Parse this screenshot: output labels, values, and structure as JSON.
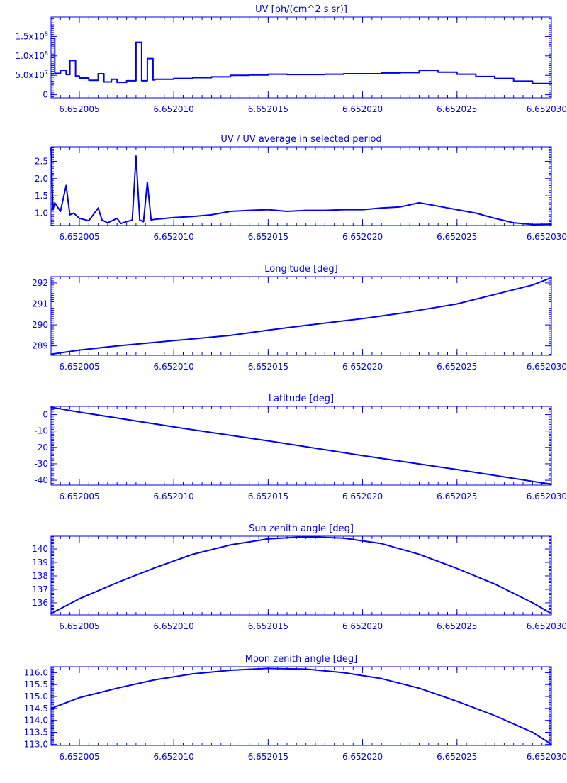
{
  "page": {
    "ink_color": "#0000ee",
    "background": "#ffffff"
  },
  "chart_data": [
    {
      "type": "line",
      "style": "step",
      "title": "UV [ph/(cm^2 s sr)]",
      "xlabel": "",
      "ylabel": "",
      "xlim": [
        6.6520035,
        6.65203
      ],
      "ylim": [
        -8000000,
        200000000
      ],
      "x_ticks": [
        6.652005,
        6.65201,
        6.652015,
        6.65202,
        6.652025,
        6.65203
      ],
      "x_tick_labels": [
        "6.652005",
        "6.652010",
        "6.652015",
        "6.652020",
        "6.652025",
        "6.652030"
      ],
      "y_ticks": [
        0,
        50000000,
        100000000,
        150000000
      ],
      "y_tick_labels": [
        {
          "base": "0",
          "exp": ""
        },
        {
          "base": "5.0x10",
          "exp": "7"
        },
        {
          "base": "1.0x10",
          "exp": "8"
        },
        {
          "base": "1.5x10",
          "exp": "8"
        }
      ],
      "series": [
        {
          "x": [
            6.6520035,
            6.6520037,
            6.652004,
            6.6520043,
            6.6520045,
            6.6520048,
            6.652005,
            6.6520055,
            6.652006,
            6.6520063,
            6.6520067,
            6.652007,
            6.6520075,
            6.652008,
            6.6520083,
            6.6520086,
            6.6520089,
            6.652009,
            6.65201,
            6.652011,
            6.652012,
            6.652013,
            6.652014,
            6.652015,
            6.652016,
            6.652017,
            6.652018,
            6.652019,
            6.65202,
            6.652021,
            6.652022,
            6.652023,
            6.652024,
            6.652025,
            6.652026,
            6.652027,
            6.652028,
            6.652029,
            6.65203
          ],
          "y": [
            145000000,
            55000000,
            63000000,
            52000000,
            88000000,
            48000000,
            43000000,
            37000000,
            54000000,
            33000000,
            40000000,
            32000000,
            36000000,
            135000000,
            36000000,
            93000000,
            38000000,
            40000000,
            42000000,
            44000000,
            46000000,
            50000000,
            51000000,
            53000000,
            52000000,
            52000000,
            53000000,
            54000000,
            54000000,
            56000000,
            57000000,
            63000000,
            58000000,
            53000000,
            47000000,
            42000000,
            35000000,
            29000000,
            30000000
          ]
        }
      ]
    },
    {
      "type": "line",
      "title": "UV / UV average in selected period",
      "xlabel": "",
      "ylabel": "",
      "xlim": [
        6.6520035,
        6.65203
      ],
      "ylim": [
        0.64,
        2.92
      ],
      "x_ticks": [
        6.652005,
        6.65201,
        6.652015,
        6.65202,
        6.652025,
        6.65203
      ],
      "x_tick_labels": [
        "6.652005",
        "6.652010",
        "6.652015",
        "6.652020",
        "6.652025",
        "6.652030"
      ],
      "y_ticks": [
        1.0,
        1.5,
        2.0,
        2.5
      ],
      "y_tick_labels": [
        {
          "base": "1.0",
          "exp": ""
        },
        {
          "base": "1.5",
          "exp": ""
        },
        {
          "base": "2.0",
          "exp": ""
        },
        {
          "base": "2.5",
          "exp": ""
        }
      ],
      "series": [
        {
          "x": [
            6.6520035,
            6.6520036,
            6.6520037,
            6.652004,
            6.6520043,
            6.6520045,
            6.6520047,
            6.652005,
            6.6520055,
            6.652006,
            6.6520062,
            6.6520065,
            6.652007,
            6.6520072,
            6.6520075,
            6.6520078,
            6.652008,
            6.6520082,
            6.6520084,
            6.6520086,
            6.6520088,
            6.652009,
            6.65201,
            6.652011,
            6.652012,
            6.652013,
            6.652014,
            6.652015,
            6.652016,
            6.652017,
            6.652018,
            6.652019,
            6.65202,
            6.652021,
            6.652022,
            6.652023,
            6.652024,
            6.652025,
            6.652026,
            6.652027,
            6.652028,
            6.652029,
            6.65203
          ],
          "y": [
            2.9,
            1.1,
            1.3,
            1.05,
            1.8,
            0.95,
            1.0,
            0.85,
            0.78,
            1.15,
            0.8,
            0.72,
            0.85,
            0.7,
            0.75,
            0.8,
            2.65,
            0.8,
            0.75,
            1.9,
            0.8,
            0.82,
            0.87,
            0.9,
            0.95,
            1.05,
            1.08,
            1.1,
            1.05,
            1.08,
            1.08,
            1.1,
            1.1,
            1.15,
            1.18,
            1.3,
            1.2,
            1.1,
            1.0,
            0.85,
            0.72,
            0.67,
            0.68
          ]
        }
      ]
    },
    {
      "type": "line",
      "title": "Longitude [deg]",
      "xlabel": "",
      "ylabel": "",
      "xlim": [
        6.6520035,
        6.65203
      ],
      "ylim": [
        288.55,
        292.3
      ],
      "x_ticks": [
        6.652005,
        6.65201,
        6.652015,
        6.65202,
        6.652025,
        6.65203
      ],
      "x_tick_labels": [
        "6.652005",
        "6.652010",
        "6.652015",
        "6.652020",
        "6.652025",
        "6.652030"
      ],
      "y_ticks": [
        289,
        290,
        291,
        292
      ],
      "y_tick_labels": [
        {
          "base": "289",
          "exp": ""
        },
        {
          "base": "290",
          "exp": ""
        },
        {
          "base": "291",
          "exp": ""
        },
        {
          "base": "292",
          "exp": ""
        }
      ],
      "series": [
        {
          "x": [
            6.6520035,
            6.652005,
            6.652007,
            6.65201,
            6.652013,
            6.652015,
            6.652017,
            6.65202,
            6.652022,
            6.652025,
            6.652027,
            6.652029,
            6.65203
          ],
          "y": [
            288.6,
            288.8,
            289.0,
            289.25,
            289.5,
            289.75,
            289.98,
            290.3,
            290.55,
            291.0,
            291.45,
            291.9,
            292.25
          ]
        }
      ]
    },
    {
      "type": "line",
      "title": "Latitude [deg]",
      "xlabel": "",
      "ylabel": "",
      "xlim": [
        6.6520035,
        6.65203
      ],
      "ylim": [
        -43,
        5
      ],
      "x_ticks": [
        6.652005,
        6.65201,
        6.652015,
        6.65202,
        6.652025,
        6.65203
      ],
      "x_tick_labels": [
        "6.652005",
        "6.652010",
        "6.652015",
        "6.652020",
        "6.652025",
        "6.652030"
      ],
      "y_ticks": [
        0,
        -10,
        -20,
        -30,
        -40
      ],
      "y_tick_labels": [
        {
          "base": "0",
          "exp": ""
        },
        {
          "base": "-10",
          "exp": ""
        },
        {
          "base": "-20",
          "exp": ""
        },
        {
          "base": "-30",
          "exp": ""
        },
        {
          "base": "-40",
          "exp": ""
        }
      ],
      "series": [
        {
          "x": [
            6.6520035,
            6.652005,
            6.65201,
            6.652015,
            6.65202,
            6.652025,
            6.65203
          ],
          "y": [
            4.5,
            1.5,
            -7.5,
            -16,
            -25,
            -33.5,
            -42.5
          ]
        }
      ]
    },
    {
      "type": "line",
      "title": "Sun zenith angle [deg]",
      "xlabel": "",
      "ylabel": "",
      "xlim": [
        6.6520035,
        6.65203
      ],
      "ylim": [
        135.1,
        140.95
      ],
      "x_ticks": [
        6.652005,
        6.65201,
        6.652015,
        6.65202,
        6.652025,
        6.65203
      ],
      "x_tick_labels": [
        "6.652005",
        "6.652010",
        "6.652015",
        "6.652020",
        "6.652025",
        "6.652030"
      ],
      "y_ticks": [
        136,
        137,
        138,
        139,
        140
      ],
      "y_tick_labels": [
        {
          "base": "136",
          "exp": ""
        },
        {
          "base": "137",
          "exp": ""
        },
        {
          "base": "138",
          "exp": ""
        },
        {
          "base": "139",
          "exp": ""
        },
        {
          "base": "140",
          "exp": ""
        }
      ],
      "series": [
        {
          "x": [
            6.6520035,
            6.652005,
            6.652007,
            6.652009,
            6.652011,
            6.652013,
            6.652015,
            6.652017,
            6.652019,
            6.652021,
            6.652023,
            6.652025,
            6.652027,
            6.652029,
            6.65203
          ],
          "y": [
            135.2,
            136.3,
            137.5,
            138.6,
            139.6,
            140.3,
            140.75,
            140.9,
            140.8,
            140.4,
            139.6,
            138.55,
            137.4,
            136.0,
            135.2
          ]
        }
      ]
    },
    {
      "type": "line",
      "title": "Moon zenith angle [deg]",
      "xlabel": "",
      "ylabel": "",
      "xlim": [
        6.6520035,
        6.65203
      ],
      "ylim": [
        112.95,
        116.25
      ],
      "x_ticks": [
        6.652005,
        6.65201,
        6.652015,
        6.65202,
        6.652025,
        6.65203
      ],
      "x_tick_labels": [
        "6.652005",
        "6.652010",
        "6.652015",
        "6.652020",
        "6.652025",
        "6.652030"
      ],
      "y_ticks": [
        113.0,
        113.5,
        114.0,
        114.5,
        115.0,
        115.5,
        116.0
      ],
      "y_tick_labels": [
        {
          "base": "113.0",
          "exp": ""
        },
        {
          "base": "113.5",
          "exp": ""
        },
        {
          "base": "114.0",
          "exp": ""
        },
        {
          "base": "114.5",
          "exp": ""
        },
        {
          "base": "115.0",
          "exp": ""
        },
        {
          "base": "115.5",
          "exp": ""
        },
        {
          "base": "116.0",
          "exp": ""
        }
      ],
      "series": [
        {
          "x": [
            6.6520035,
            6.652005,
            6.652007,
            6.652009,
            6.652011,
            6.652013,
            6.652015,
            6.652017,
            6.652019,
            6.652021,
            6.652023,
            6.652025,
            6.652027,
            6.652029,
            6.65203
          ],
          "y": [
            114.5,
            114.95,
            115.35,
            115.7,
            115.95,
            116.1,
            116.18,
            116.15,
            116.0,
            115.75,
            115.35,
            114.8,
            114.2,
            113.5,
            113.0
          ]
        }
      ]
    }
  ]
}
